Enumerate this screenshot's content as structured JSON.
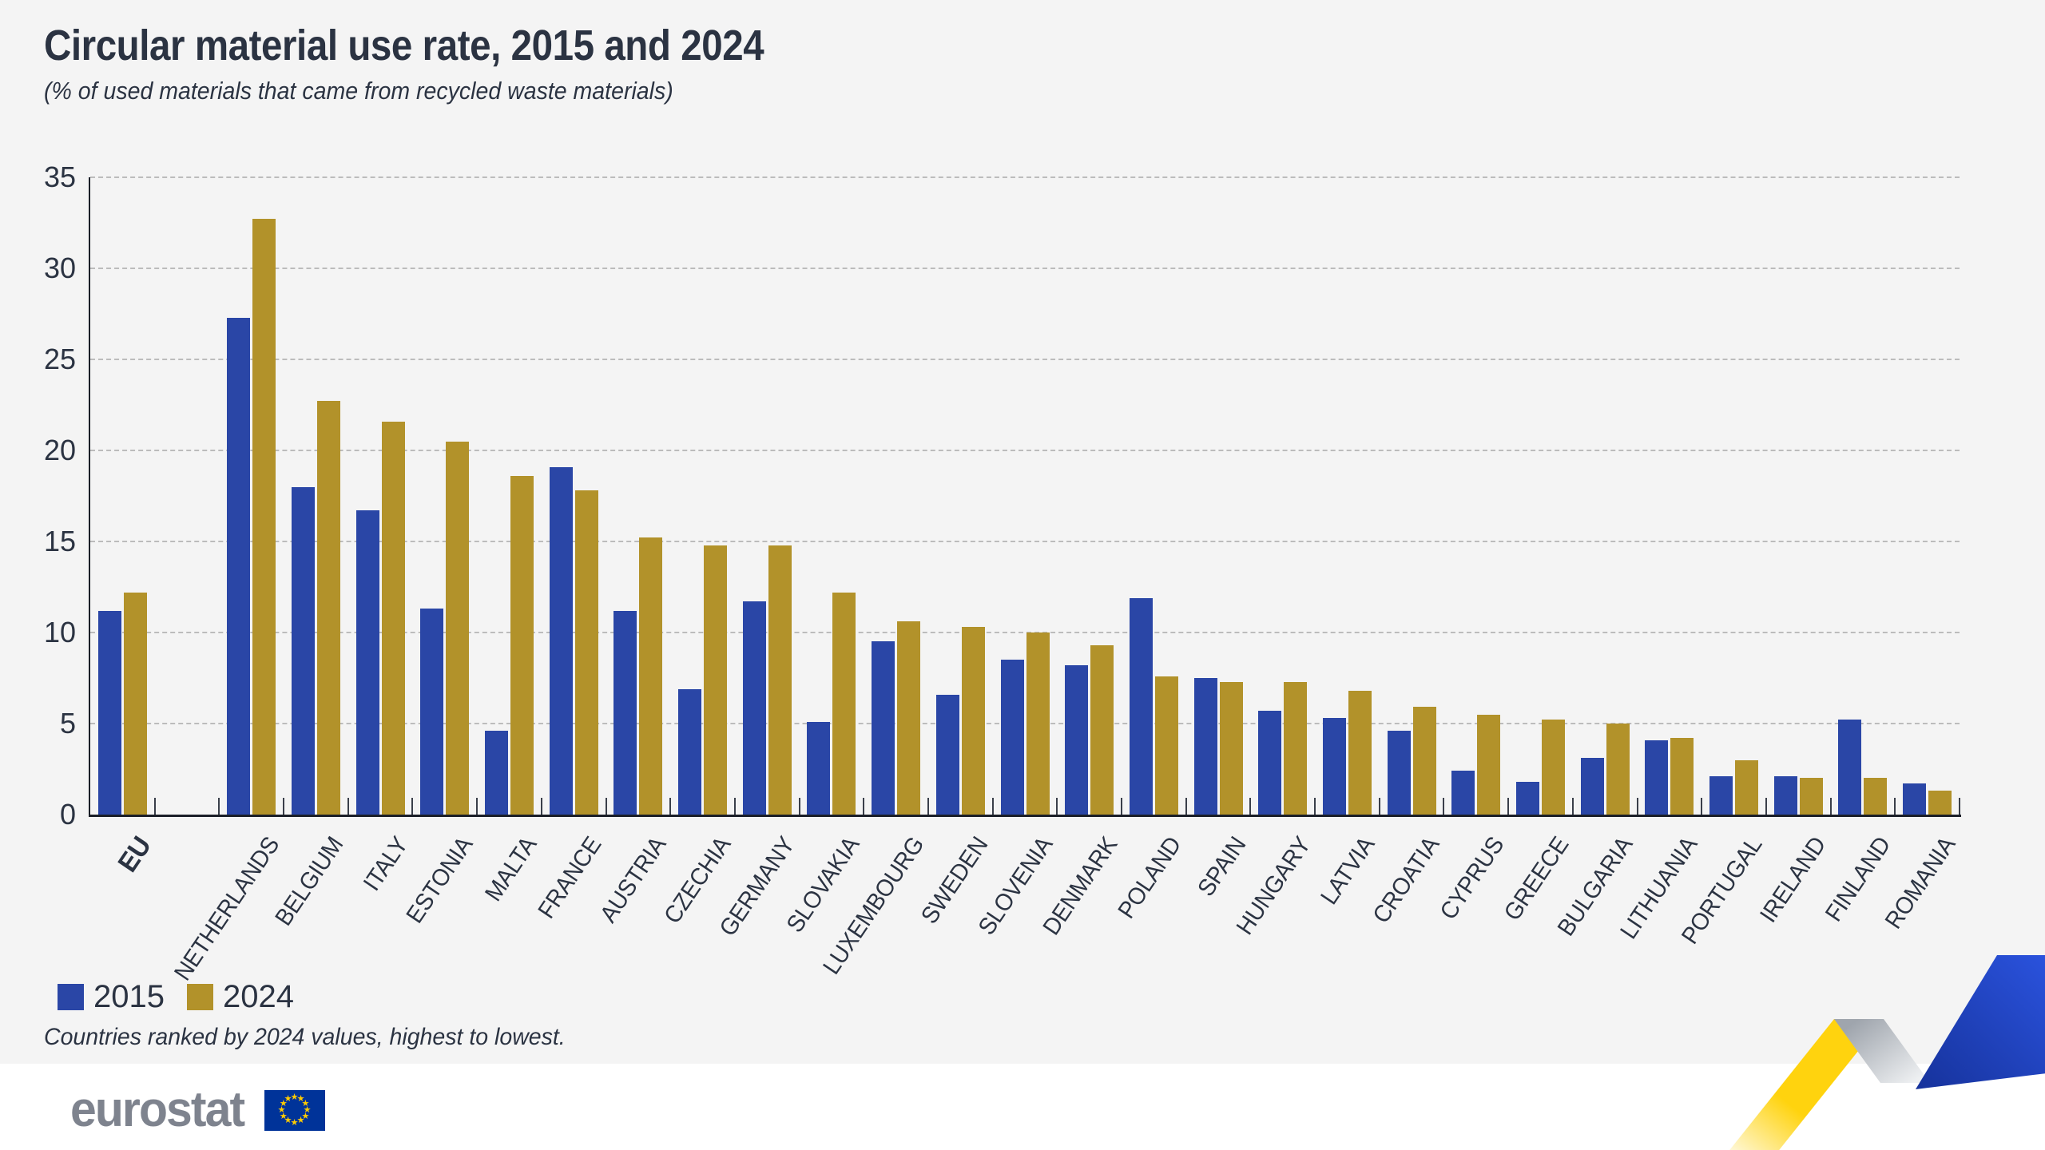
{
  "title": "Circular material use rate, 2015 and 2024",
  "subtitle": "(% of used materials that came from recycled waste materials)",
  "footnote": "Countries ranked by 2024 values, highest to lowest.",
  "logo_text": "eurostat",
  "legend": {
    "items": [
      {
        "label": "2015",
        "color": "#2a46a6"
      },
      {
        "label": "2024",
        "color": "#b2922a"
      }
    ]
  },
  "colors": {
    "series_2015": "#2a46a6",
    "series_2024": "#b2922a",
    "text": "#2b3342",
    "panel_background": "#f4f4f4",
    "gridline": "#bcbcbc",
    "logo_gray": "#7e838e",
    "flag_blue": "#003399",
    "flag_star_yellow": "#ffcc00",
    "ribbon_yellow": "#ffd30e",
    "ribbon_blue": "#2a52dc"
  },
  "chart_data": {
    "type": "bar",
    "title": "Circular material use rate, 2015 and 2024",
    "subtitle": "(% of used materials that came from recycled waste materials)",
    "xlabel": "",
    "ylabel": "",
    "ylim": [
      0,
      35
    ],
    "ytick_step": 5,
    "grid": "horizontal-dashed",
    "legend_position": "bottom-left",
    "layout_note": "EU group separated from member states by one empty slot; countries ranked by 2024 values descending",
    "categories": [
      "EU",
      "NETHERLANDS",
      "BELGIUM",
      "ITALY",
      "ESTONIA",
      "MALTA",
      "FRANCE",
      "AUSTRIA",
      "CZECHIA",
      "GERMANY",
      "SLOVAKIA",
      "LUXEMBOURG",
      "SWEDEN",
      "SLOVENIA",
      "DENMARK",
      "POLAND",
      "SPAIN",
      "HUNGARY",
      "LATVIA",
      "CROATIA",
      "CYPRUS",
      "GREECE",
      "BULGARIA",
      "LITHUANIA",
      "PORTUGAL",
      "IRELAND",
      "FINLAND",
      "ROMANIA"
    ],
    "series": [
      {
        "name": "2015",
        "color": "#2a46a6",
        "values": [
          11.2,
          27.3,
          18.0,
          16.7,
          11.3,
          4.6,
          19.1,
          11.2,
          6.9,
          11.7,
          5.1,
          9.5,
          6.6,
          8.5,
          8.2,
          11.9,
          7.5,
          5.7,
          5.3,
          4.6,
          2.4,
          1.8,
          3.1,
          4.1,
          2.1,
          2.1,
          5.2,
          1.7
        ]
      },
      {
        "name": "2024",
        "color": "#b2922a",
        "values": [
          12.2,
          32.7,
          22.7,
          21.6,
          20.5,
          18.6,
          17.8,
          15.2,
          14.8,
          14.8,
          12.2,
          10.6,
          10.3,
          10.0,
          9.3,
          7.6,
          7.3,
          7.3,
          6.8,
          5.9,
          5.5,
          5.2,
          5.0,
          4.2,
          3.0,
          2.0,
          2.0,
          1.3
        ]
      }
    ]
  }
}
